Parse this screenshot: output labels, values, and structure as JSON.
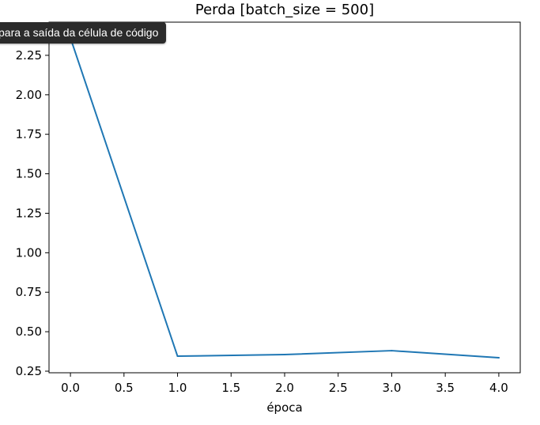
{
  "tooltip": {
    "text": "para a saída da célula de código"
  },
  "chart_data": {
    "type": "line",
    "title": "Perda [batch_size = 500]",
    "xlabel": "época",
    "ylabel": "",
    "x": [
      0.0,
      1.0,
      2.0,
      3.0,
      4.0
    ],
    "series": [
      {
        "values": [
          2.36,
          0.345,
          0.355,
          0.38,
          0.335
        ],
        "color": "#1f77b4"
      }
    ],
    "xlim": [
      -0.2,
      4.2
    ],
    "ylim": [
      0.24,
      2.46
    ],
    "xticks": [
      0.0,
      0.5,
      1.0,
      1.5,
      2.0,
      2.5,
      3.0,
      3.5,
      4.0
    ],
    "xtick_labels": [
      "0.0",
      "0.5",
      "1.0",
      "1.5",
      "2.0",
      "2.5",
      "3.0",
      "3.5",
      "4.0"
    ],
    "yticks": [
      0.25,
      0.5,
      0.75,
      1.0,
      1.25,
      1.5,
      1.75,
      2.0,
      2.25
    ],
    "ytick_labels": [
      "0.25",
      "0.50",
      "0.75",
      "1.00",
      "1.25",
      "1.50",
      "1.75",
      "2.00",
      "2.25"
    ],
    "grid": false,
    "legend": "none"
  }
}
